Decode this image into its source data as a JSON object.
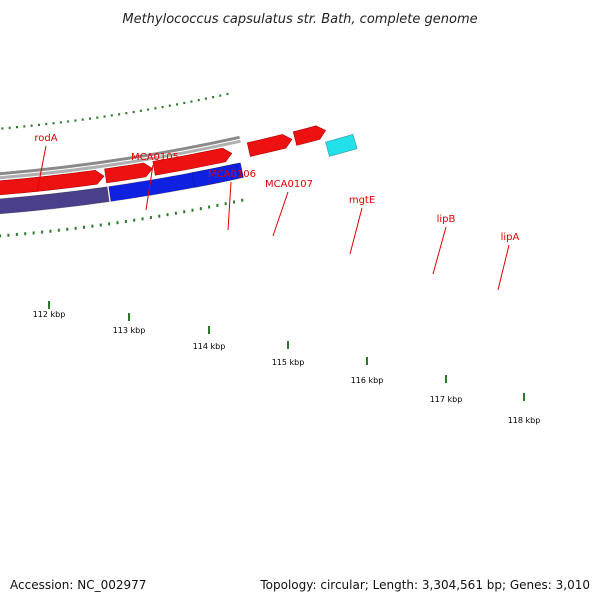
{
  "title": "Methylococcus capsulatus str. Bath, complete genome",
  "footer": {
    "accession": "Accession: NC_002977",
    "summary": "Topology: circular; Length: 3,304,561 bp; Genes: 3,010"
  },
  "colors": {
    "backbone": "#8a8a8a",
    "cds": "#ee1111",
    "label": "#e00000",
    "tick": "#2a7a2a"
  },
  "ticks": [
    {
      "label": "112 kbp"
    },
    {
      "label": "113 kbp"
    },
    {
      "label": "114 kbp"
    },
    {
      "label": "115 kbp"
    },
    {
      "label": "116 kbp"
    },
    {
      "label": "117 kbp"
    },
    {
      "label": "118 kbp"
    }
  ],
  "genes": [
    {
      "name": "rodA",
      "color": "#f3eaa0"
    },
    {
      "name": "MCA0105",
      "color": "#6f8f2a"
    },
    {
      "name": "MCA0106",
      "color": "#2030d0"
    },
    {
      "name": "MCA0107",
      "color": "#7a7a7a"
    },
    {
      "name": "mgtE",
      "color": "#4a3f8a"
    },
    {
      "name": "lipB",
      "color": "#1020e0"
    },
    {
      "name": "lipA",
      "color": "#1020e0"
    },
    {
      "name": "",
      "color": "#22e0e8"
    }
  ]
}
